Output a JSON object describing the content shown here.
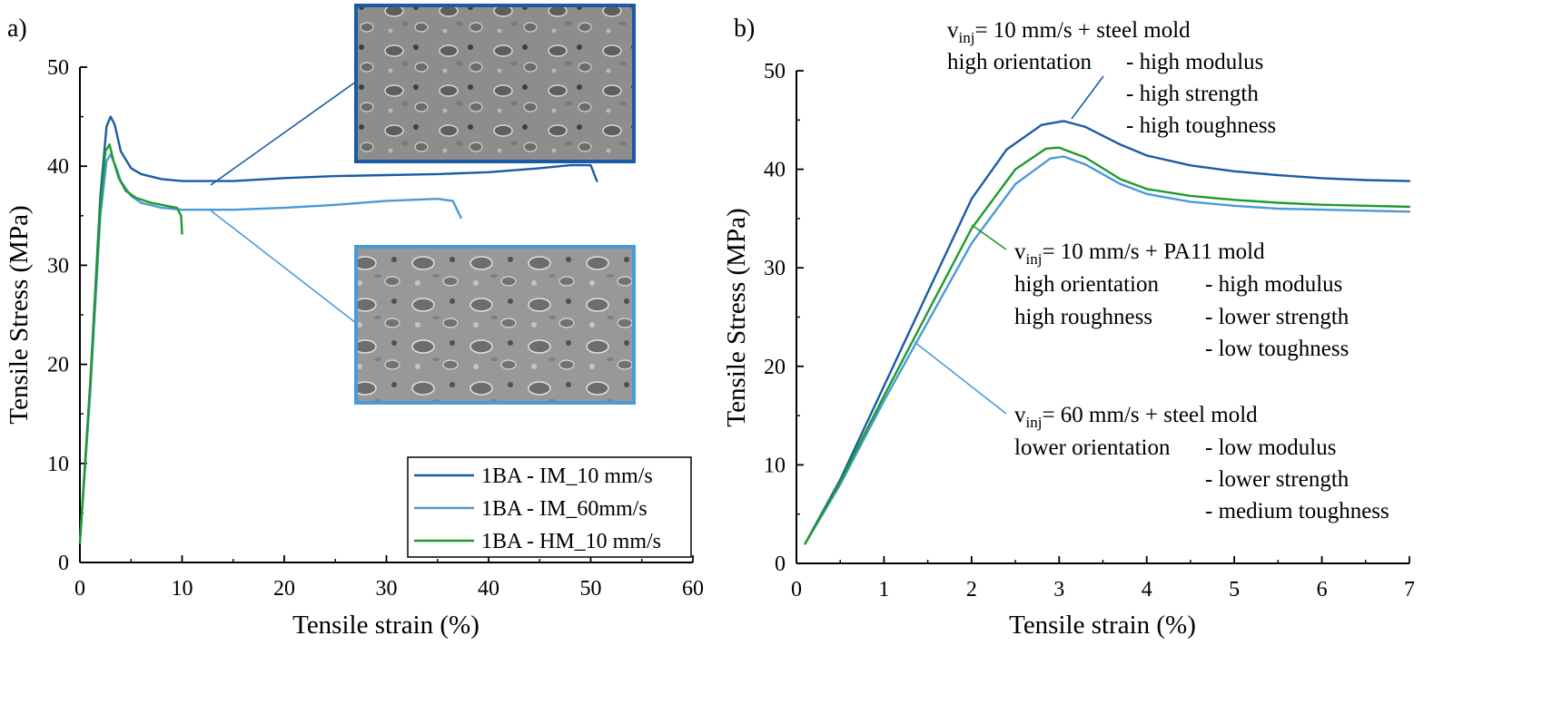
{
  "colors": {
    "dark_blue": "#1a5ba6",
    "light_blue": "#4a9ad8",
    "green": "#1f9a2b"
  },
  "sem_images": [
    {
      "panel": "a",
      "name": "IM_10 mm/s fracture surface",
      "border_color": "#1a5ba6"
    },
    {
      "panel": "a",
      "name": "IM_60mm/s fracture surface",
      "border_color": "#4a9ad8"
    }
  ],
  "chart_data": [
    {
      "panel_label": "a)",
      "type": "line",
      "xlabel": "Tensile strain (%)",
      "ylabel": "Tensile Stress (MPa)",
      "xlim": [
        0,
        60
      ],
      "ylim": [
        0,
        50
      ],
      "xticks": [
        "0",
        "10",
        "20",
        "30",
        "40",
        "50",
        "60"
      ],
      "yticks": [
        "0",
        "10",
        "20",
        "30",
        "40",
        "50"
      ],
      "legend_position": "bottom-right",
      "series": [
        {
          "name": "1BA - IM_10 mm/s",
          "color": "#1a5ba6",
          "x": [
            0,
            1,
            2,
            2.6,
            3,
            3.4,
            4,
            5,
            6,
            8,
            10,
            15,
            20,
            25,
            30,
            35,
            40,
            45,
            48,
            50,
            50.6
          ],
          "y": [
            2,
            18,
            37,
            44,
            45,
            44.2,
            41.5,
            39.8,
            39.2,
            38.7,
            38.5,
            38.5,
            38.8,
            39,
            39.1,
            39.2,
            39.4,
            39.8,
            40.1,
            40.1,
            38.5
          ]
        },
        {
          "name": "1BA - IM_60mm/s",
          "color": "#4a9ad8",
          "x": [
            0,
            1,
            2,
            2.6,
            3,
            3.5,
            4,
            5,
            6,
            8,
            10,
            15,
            20,
            25,
            30,
            35,
            36.5,
            37.3
          ],
          "y": [
            2,
            17,
            35,
            40.5,
            41.2,
            40,
            38.5,
            37,
            36.3,
            35.8,
            35.6,
            35.6,
            35.8,
            36.1,
            36.5,
            36.7,
            36.5,
            34.8
          ]
        },
        {
          "name": "1BA - HM_10 mm/s",
          "color": "#1f9a2b",
          "x": [
            0,
            1,
            2,
            2.5,
            2.9,
            3.3,
            3.8,
            4.5,
            5.5,
            7,
            8.5,
            9.5,
            9.9,
            10
          ],
          "y": [
            2,
            18,
            36,
            41.5,
            42.2,
            40.5,
            38.8,
            37.5,
            36.8,
            36.3,
            36,
            35.8,
            35,
            33.2
          ]
        }
      ]
    },
    {
      "panel_label": "b)",
      "type": "line",
      "xlabel": "Tensile strain (%)",
      "ylabel": "Tensile Stress (MPa)",
      "xlim": [
        0,
        7
      ],
      "ylim": [
        0,
        50
      ],
      "xticks": [
        "0",
        "1",
        "2",
        "3",
        "4",
        "5",
        "6",
        "7"
      ],
      "yticks": [
        "0",
        "10",
        "20",
        "30",
        "40",
        "50"
      ],
      "series": [
        {
          "name": "IM_10 mm/s",
          "color": "#1a5ba6",
          "x": [
            0.1,
            0.5,
            1,
            1.5,
            2,
            2.4,
            2.8,
            3.05,
            3.3,
            3.7,
            4,
            4.5,
            5,
            5.5,
            6,
            6.5,
            7
          ],
          "y": [
            2,
            8.5,
            18,
            27.5,
            37,
            42,
            44.5,
            44.9,
            44.3,
            42.5,
            41.4,
            40.4,
            39.8,
            39.4,
            39.1,
            38.9,
            38.8
          ]
        },
        {
          "name": "IM_60mm/s",
          "color": "#4a9ad8",
          "x": [
            0.1,
            0.5,
            1,
            1.5,
            2,
            2.5,
            2.9,
            3.05,
            3.3,
            3.7,
            4,
            4.5,
            5,
            5.5,
            6,
            6.5,
            7
          ],
          "y": [
            2,
            8,
            16.5,
            24.5,
            32.5,
            38.5,
            41.1,
            41.3,
            40.5,
            38.5,
            37.5,
            36.7,
            36.3,
            36,
            35.9,
            35.8,
            35.7
          ]
        },
        {
          "name": "HM_10 mm/s",
          "color": "#1f9a2b",
          "x": [
            0.1,
            0.5,
            1,
            1.5,
            2,
            2.5,
            2.85,
            3,
            3.3,
            3.7,
            4,
            4.5,
            5,
            5.5,
            6,
            6.5,
            7
          ],
          "y": [
            2,
            8.3,
            17,
            25.5,
            34,
            40,
            42.1,
            42.2,
            41.2,
            39,
            38,
            37.3,
            36.9,
            36.6,
            36.4,
            36.3,
            36.2
          ]
        }
      ],
      "annotations": [
        {
          "series": "IM_10 mm/s",
          "v_prefix": "v",
          "v_sub": "inj",
          "condition": "= 10 mm/s + steel mold",
          "rows": [
            [
              "high orientation",
              "- high modulus"
            ],
            [
              "",
              "- high strength"
            ],
            [
              "",
              "- high toughness"
            ]
          ]
        },
        {
          "series": "HM_10 mm/s",
          "v_prefix": "v",
          "v_sub": "inj",
          "condition": "= 10 mm/s + PA11 mold",
          "rows": [
            [
              "high orientation",
              "- high modulus"
            ],
            [
              "high roughness",
              "- lower strength"
            ],
            [
              "",
              "- low toughness"
            ]
          ]
        },
        {
          "series": "IM_60mm/s",
          "v_prefix": "v",
          "v_sub": "inj",
          "condition": "= 60 mm/s + steel mold",
          "rows": [
            [
              "lower orientation",
              "- low modulus"
            ],
            [
              "",
              "- lower strength"
            ],
            [
              "",
              "- medium toughness"
            ]
          ]
        }
      ]
    }
  ]
}
